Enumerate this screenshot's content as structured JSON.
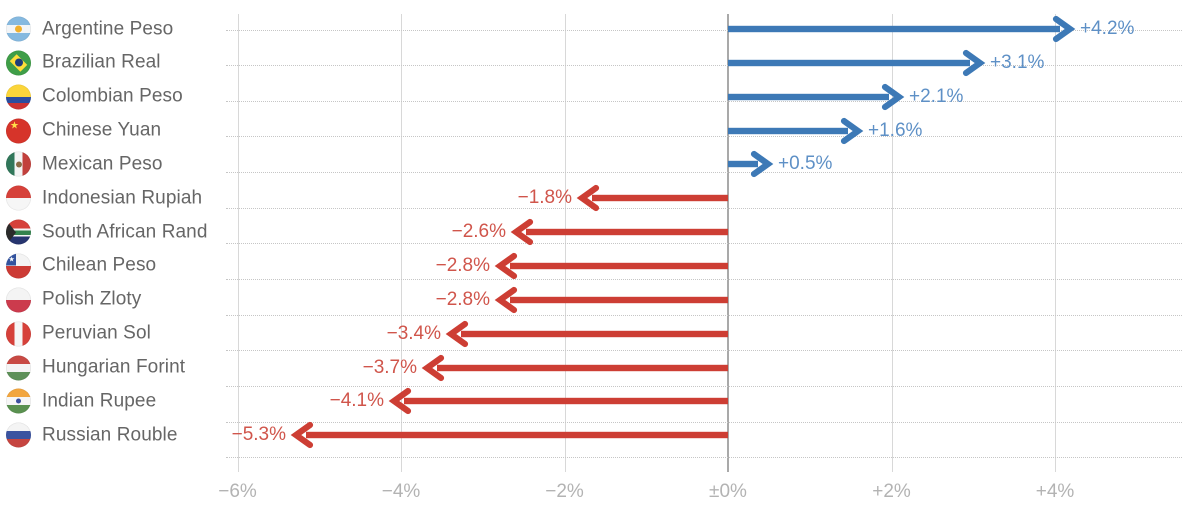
{
  "chart_data": {
    "type": "bar",
    "title": "",
    "xlabel": "",
    "ylabel": "",
    "orientation": "horizontal-arrows",
    "grid": "vertical-solid-and-row-dotted-leaders",
    "legend": "none",
    "xlim": [
      -6.2,
      5.6
    ],
    "categories": [
      "Argentine Peso",
      "Brazilian Real",
      "Colombian Peso",
      "Chinese Yuan",
      "Mexican Peso",
      "Indonesian Rupiah",
      "South African Rand",
      "Chilean Peso",
      "Polish Zloty",
      "Peruvian Sol",
      "Hungarian Forint",
      "Indian Rupee",
      "Russian Rouble"
    ],
    "values": [
      4.2,
      3.1,
      2.1,
      1.6,
      0.5,
      -1.8,
      -2.6,
      -2.8,
      -2.8,
      -3.4,
      -3.7,
      -4.1,
      -5.3
    ],
    "value_labels": [
      "+4.2%",
      "+3.1%",
      "+2.1%",
      "+1.6%",
      "+0.5%",
      "−1.8%",
      "−2.6%",
      "−2.8%",
      "−2.8%",
      "−3.4%",
      "−3.7%",
      "−4.1%",
      "−5.3%"
    ],
    "flags": [
      "argentina",
      "brazil",
      "colombia",
      "china",
      "mexico",
      "indonesia",
      "south-africa",
      "chile",
      "poland",
      "peru",
      "hungary",
      "india",
      "russia"
    ],
    "x_axis": {
      "ticks": [
        {
          "value": -6,
          "label": "−6%"
        },
        {
          "value": -4,
          "label": "−4%"
        },
        {
          "value": -2,
          "label": "−2%"
        },
        {
          "value": 0,
          "label": "±0%"
        },
        {
          "value": 2,
          "label": "+2%"
        },
        {
          "value": 4,
          "label": "+4%"
        }
      ]
    },
    "colors": {
      "positive_arrow": "#3d79b6",
      "positive_label": "#5e90c6",
      "negative_arrow": "#cd3e34",
      "negative_label": "#d0554b",
      "category_label": "#666666",
      "tick_label": "#b3b3b3",
      "gridline": "#d8d8d8",
      "zero_line": "#a9a9a9",
      "leader_dots": "#c6c6c6"
    }
  }
}
